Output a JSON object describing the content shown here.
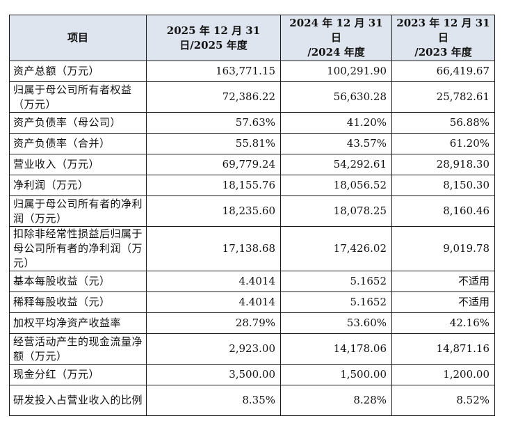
{
  "table": {
    "headers": [
      "项目",
      "2025年12月31日/2025年度",
      "2024年12月31日/2024年度",
      "2023年12月31日/2023年度"
    ],
    "header_lines": [
      [
        "项目"
      ],
      [
        "2025 年 12 月 31",
        "日/2025 年度"
      ],
      [
        "2024 年 12 月 31 日",
        "/2024 年度"
      ],
      [
        "2023 年 12 月 31 日",
        "/2023 年度"
      ]
    ],
    "rows": [
      {
        "label": "资产总额（万元）",
        "values": [
          "163,771.15",
          "100,291.90",
          "66,419.67"
        ]
      },
      {
        "label": "归属于母公司所有者权益（万元）",
        "values": [
          "72,386.22",
          "56,630.28",
          "25,782.61"
        ]
      },
      {
        "label": "资产负债率（母公司）",
        "values": [
          "57.63%",
          "41.20%",
          "56.88%"
        ]
      },
      {
        "label": "资产负债率（合并）",
        "values": [
          "55.81%",
          "43.57%",
          "61.20%"
        ]
      },
      {
        "label": "营业收入（万元）",
        "values": [
          "69,779.24",
          "54,292.61",
          "28,918.30"
        ]
      },
      {
        "label": "净利润（万元）",
        "values": [
          "18,155.76",
          "18,056.52",
          "8,150.30"
        ]
      },
      {
        "label": "归属于母公司所有者的净利润（万元）",
        "values": [
          "18,235.60",
          "18,078.25",
          "8,160.46"
        ]
      },
      {
        "label": "扣除非经常性损益后归属于母公司所有者的净利润（万元）",
        "values": [
          "17,138.68",
          "17,426.02",
          "9,019.78"
        ]
      },
      {
        "label": "基本每股收益（元）",
        "values": [
          "4.4014",
          "5.1652",
          "不适用"
        ]
      },
      {
        "label": "稀释每股收益（元）",
        "values": [
          "4.4014",
          "5.1652",
          "不适用"
        ]
      },
      {
        "label": "加权平均净资产收益率",
        "values": [
          "28.79%",
          "53.60%",
          "42.16%"
        ]
      },
      {
        "label": "经营活动产生的现金流量净额（万元）",
        "values": [
          "2,923.00",
          "14,178.06",
          "14,871.16"
        ]
      },
      {
        "label": "现金分红（万元）",
        "values": [
          "3,500.00",
          "1,500.00",
          "1,200.00"
        ]
      },
      {
        "label": "研发投入占营业收入的比例",
        "values": [
          "8.35%",
          "8.28%",
          "8.52%"
        ]
      }
    ]
  }
}
